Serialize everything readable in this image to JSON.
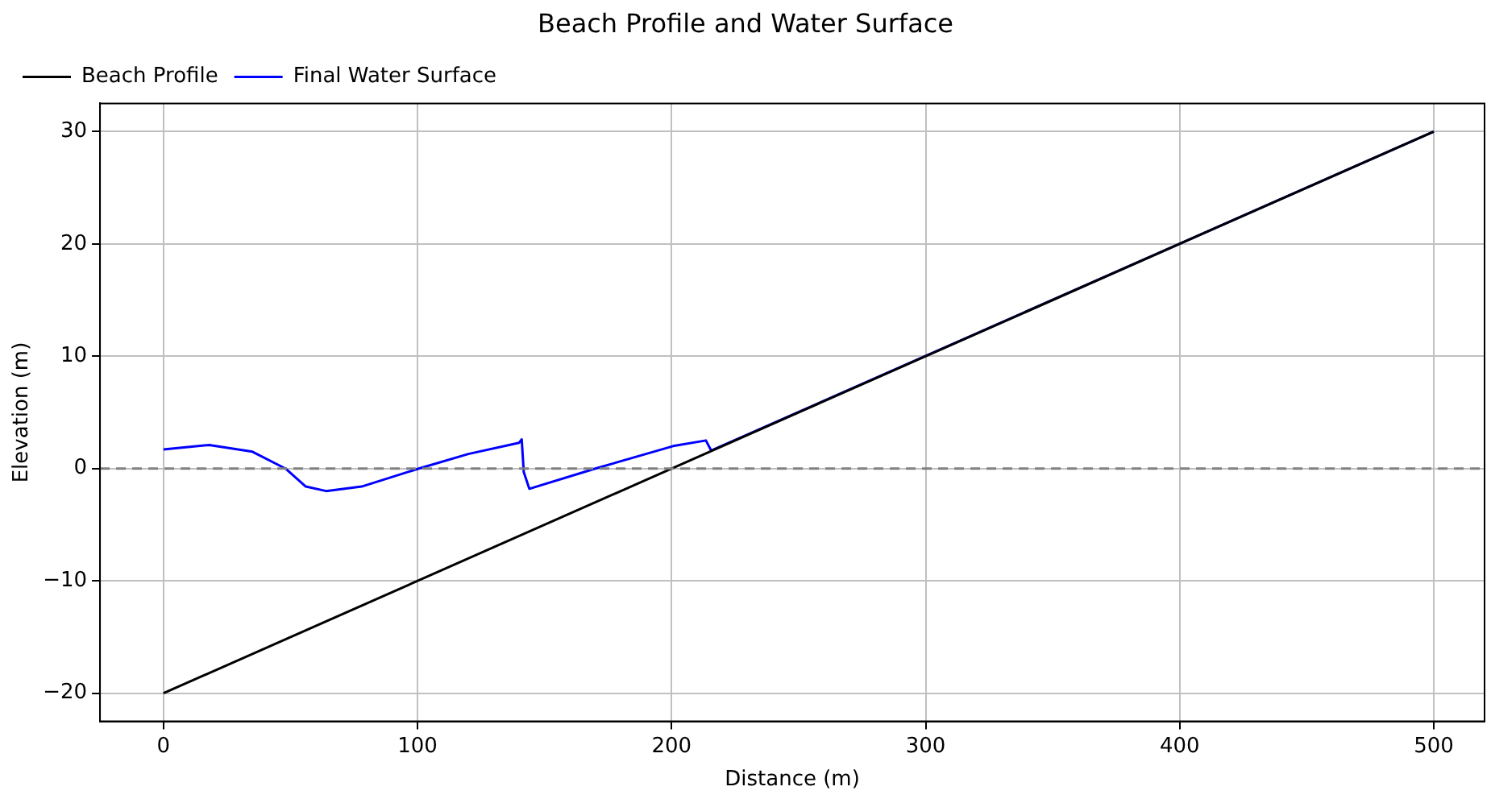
{
  "chart_data": {
    "type": "line",
    "title": "Beach Profile and Water Surface",
    "xlabel": "Distance (m)",
    "ylabel": "Elevation (m)",
    "xlim": [
      -25,
      520
    ],
    "xticks": [
      0,
      100,
      200,
      300,
      400,
      500
    ],
    "ylim": [
      -22.5,
      32.5
    ],
    "yticks": [
      -20,
      -10,
      0,
      10,
      20,
      30
    ],
    "grid": true,
    "legend": "top left",
    "marker": "none",
    "series": [
      {
        "name": "Beach Profile",
        "color": "#000000",
        "x": [
          0,
          500
        ],
        "values": [
          -20,
          30
        ]
      },
      {
        "name": "Final Water Surface",
        "color": "#0000ff",
        "x": [
          0,
          18,
          35,
          48,
          56,
          64,
          78,
          100.5,
          120,
          140,
          141,
          141.8,
          144,
          170,
          200.6,
          213.5,
          215.6,
          500
        ],
        "values": [
          1.7,
          2.1,
          1.5,
          0,
          -1.6,
          -2.0,
          -1.6,
          0,
          1.3,
          2.3,
          2.6,
          -0.3,
          -1.8,
          0,
          2.0,
          2.5,
          1.6,
          30
        ]
      }
    ],
    "ref_lines": [
      {
        "axis": "y",
        "value": 0,
        "color": "#808080",
        "line_style": "dashed"
      }
    ]
  }
}
